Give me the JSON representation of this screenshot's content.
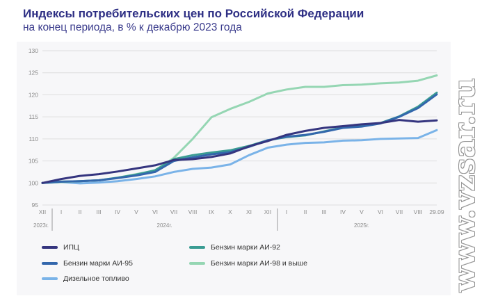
{
  "watermark": "www.vzsar.ru",
  "chart_data": {
    "type": "line",
    "title": "Индексы потребительских цен по Российской Федерации",
    "subtitle": "на конец периода, в % к декабрю 2023 года",
    "xlabel": "",
    "ylabel": "",
    "ylim": [
      95,
      130
    ],
    "yticks": [
      95,
      100,
      105,
      110,
      115,
      120,
      125,
      130
    ],
    "grid": true,
    "legend_position": "bottom",
    "categories": [
      "XII",
      "I",
      "II",
      "III",
      "IV",
      "V",
      "VI",
      "VII",
      "VIII",
      "IX",
      "X",
      "XI",
      "XII",
      "I",
      "II",
      "III",
      "IV",
      "V",
      "VI",
      "VII",
      "VIII",
      "29.09"
    ],
    "year_labels": [
      "2023г.",
      "2024г.",
      "2025г."
    ],
    "series": [
      {
        "name": "ИПЦ",
        "color": "#35357f",
        "values": [
          100,
          100.9,
          101.6,
          102.0,
          102.6,
          103.3,
          104.0,
          105.2,
          105.4,
          105.9,
          106.7,
          108.3,
          109.5,
          110.9,
          111.8,
          112.5,
          112.9,
          113.3,
          113.6,
          114.3,
          113.9,
          114.2
        ]
      },
      {
        "name": "Бензин марки АИ-92",
        "color": "#3a9c93",
        "values": [
          100,
          100.3,
          100.4,
          100.6,
          101.2,
          101.9,
          102.9,
          105.4,
          106.3,
          106.9,
          107.4,
          108.4,
          109.7,
          110.4,
          110.8,
          111.7,
          112.6,
          112.9,
          113.6,
          115.1,
          117.3,
          120.5
        ]
      },
      {
        "name": "Бензин марки АИ-95",
        "color": "#3367ac",
        "values": [
          100,
          100.3,
          100.4,
          100.6,
          101.1,
          101.7,
          102.5,
          105.0,
          105.8,
          106.5,
          107.0,
          108.2,
          109.7,
          110.5,
          110.9,
          111.6,
          112.5,
          112.8,
          113.5,
          115.0,
          117.0,
          120.1
        ]
      },
      {
        "name": "Бензин марки АИ-98 и выше",
        "color": "#95d6b3",
        "values": [
          100,
          100.2,
          100.4,
          100.6,
          101.2,
          102.0,
          102.8,
          105.7,
          110.0,
          114.9,
          116.8,
          118.4,
          120.3,
          121.2,
          121.8,
          121.8,
          122.2,
          122.3,
          122.6,
          122.8,
          123.2,
          124.4
        ]
      },
      {
        "name": "Дизельное топливо",
        "color": "#7ab3e8",
        "values": [
          100,
          100.2,
          99.9,
          100.1,
          100.4,
          100.9,
          101.5,
          102.5,
          103.2,
          103.5,
          104.2,
          106.3,
          108.0,
          108.7,
          109.1,
          109.2,
          109.6,
          109.7,
          110.0,
          110.1,
          110.2,
          112.0
        ]
      }
    ]
  }
}
